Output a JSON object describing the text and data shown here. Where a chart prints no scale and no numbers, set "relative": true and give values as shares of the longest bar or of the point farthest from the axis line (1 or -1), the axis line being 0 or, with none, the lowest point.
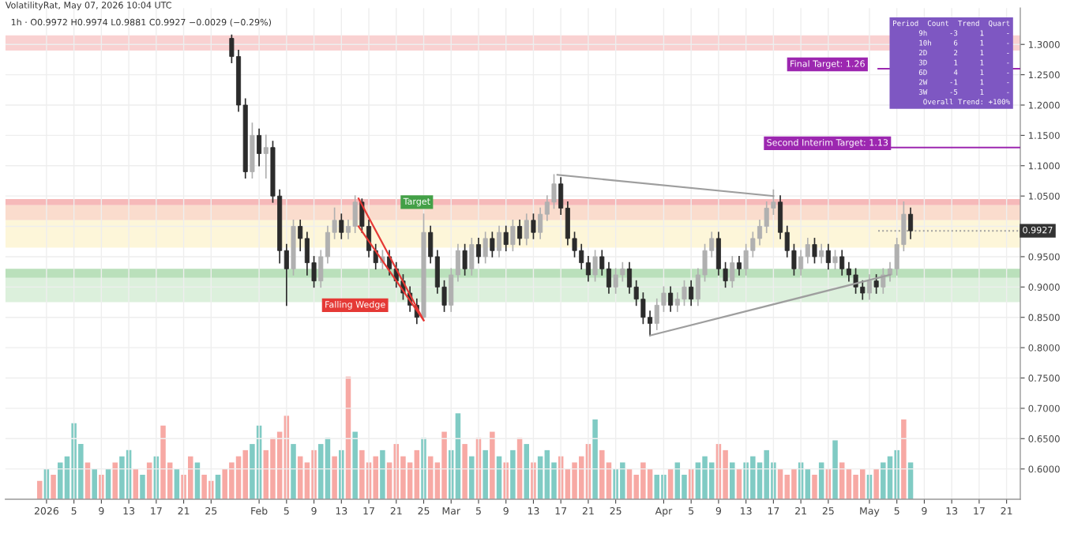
{
  "chart_data": [
    {
      "type": "candlestick",
      "title": "VolatilityRat, May 07, 2026 10:04 UTC",
      "subtitle": "1h · O0.9972 H0.9974 L0.9881 C0.9927 −0.0029 (−0.29%)",
      "colors": [
        "#2b2b2b",
        "#2b2b2b",
        "#2b2b2b",
        "#b0b0b0",
        "#2b2b2b",
        "#b0b0b0",
        "#2b2b2b",
        "#2b2b2b",
        "#2b2b2b",
        "#b0b0b0",
        "#2b2b2b",
        "#2b2b2b",
        "#2b2b2b",
        "#b0b0b0",
        "#b0b0b0",
        "#b0b0b0",
        "#2b2b2b",
        "#b0b0b0",
        "#b0b0b0",
        "#2b2b2b",
        "#2b2b2b",
        "#2b2b2b",
        "#b0b0b0",
        "#2b2b2b",
        "#2b2b2b",
        "#2b2b2b",
        "#2b2b2b",
        "#2b2b2b",
        "#b0b0b0",
        "#2b2b2b",
        "#2b2b2b",
        "#2b2b2b",
        "#b0b0b0",
        "#b0b0b0",
        "#2b2b2b",
        "#b0b0b0",
        "#2b2b2b",
        "#b0b0b0",
        "#2b2b2b",
        "#b0b0b0",
        "#2b2b2b",
        "#b0b0b0",
        "#2b2b2b",
        "#b0b0b0",
        "#2b2b2b",
        "#b0b0b0",
        "#b0b0b0",
        "#b0b0b0",
        "#2b2b2b",
        "#2b2b2b",
        "#2b2b2b",
        "#2b2b2b",
        "#2b2b2b",
        "#b0b0b0",
        "#2b2b2b",
        "#2b2b2b",
        "#b0b0b0",
        "#b0b0b0",
        "#2b2b2b",
        "#2b2b2b",
        "#2b2b2b",
        "#2b2b2b",
        "#b0b0b0",
        "#b0b0b0",
        "#2b2b2b",
        "#b0b0b0",
        "#b0b0b0",
        "#2b2b2b",
        "#b0b0b0",
        "#b0b0b0",
        "#b0b0b0",
        "#2b2b2b",
        "#2b2b2b",
        "#b0b0b0",
        "#2b2b2b",
        "#b0b0b0",
        "#b0b0b0",
        "#b0b0b0",
        "#b0b0b0",
        "#b0b0b0",
        "#2b2b2b",
        "#2b2b2b",
        "#2b2b2b",
        "#b0b0b0",
        "#b0b0b0",
        "#2b2b2b",
        "#b0b0b0",
        "#2b2b2b",
        "#b0b0b0",
        "#2b2b2b",
        "#2b2b2b",
        "#2b2b2b",
        "#2b2b2b",
        "#b0b0b0",
        "#2b2b2b",
        "#b0b0b0",
        "#b0b0b0",
        "#b0b0b0",
        "#b0b0b0",
        "#2b2b2b"
      ],
      "x": [
        "2026-01-28",
        "2026-01-29",
        "2026-01-30",
        "2026-01-31",
        "2026-02-01",
        "2026-02-02",
        "2026-02-03",
        "2026-02-04",
        "2026-02-05",
        "2026-02-06",
        "2026-02-07",
        "2026-02-08",
        "2026-02-09",
        "2026-02-10",
        "2026-02-11",
        "2026-02-12",
        "2026-02-13",
        "2026-02-14",
        "2026-02-15",
        "2026-02-16",
        "2026-02-17",
        "2026-02-18",
        "2026-02-19",
        "2026-02-20",
        "2026-02-21",
        "2026-02-22",
        "2026-02-23",
        "2026-02-24",
        "2026-02-25",
        "2026-02-26",
        "2026-02-27",
        "2026-02-28",
        "2026-03-01",
        "2026-03-02",
        "2026-03-03",
        "2026-03-04",
        "2026-03-05",
        "2026-03-06",
        "2026-03-07",
        "2026-03-08",
        "2026-03-09",
        "2026-03-10",
        "2026-03-11",
        "2026-03-12",
        "2026-03-13",
        "2026-03-14",
        "2026-03-15",
        "2026-03-16",
        "2026-03-17",
        "2026-03-18",
        "2026-03-19",
        "2026-03-20",
        "2026-03-21",
        "2026-03-22",
        "2026-03-23",
        "2026-03-24",
        "2026-03-25",
        "2026-03-26",
        "2026-03-27",
        "2026-03-28",
        "2026-03-29",
        "2026-03-30",
        "2026-03-31",
        "2026-04-01",
        "2026-04-02",
        "2026-04-03",
        "2026-04-04",
        "2026-04-05",
        "2026-04-06",
        "2026-04-07",
        "2026-04-08",
        "2026-04-09",
        "2026-04-10",
        "2026-04-11",
        "2026-04-12",
        "2026-04-13",
        "2026-04-14",
        "2026-04-15",
        "2026-04-16",
        "2026-04-17",
        "2026-04-18",
        "2026-04-19",
        "2026-04-20",
        "2026-04-21",
        "2026-04-22",
        "2026-04-23",
        "2026-04-24",
        "2026-04-25",
        "2026-04-26",
        "2026-04-27",
        "2026-04-28",
        "2026-04-29",
        "2026-04-30",
        "2026-05-01",
        "2026-05-02",
        "2026-05-03",
        "2026-05-04",
        "2026-05-05",
        "2026-05-06",
        "2026-05-07"
      ],
      "ohlc": [
        [
          1.31,
          1.315,
          1.27,
          1.28
        ],
        [
          1.28,
          1.29,
          1.19,
          1.2
        ],
        [
          1.2,
          1.21,
          1.08,
          1.09
        ],
        [
          1.09,
          1.17,
          1.08,
          1.15
        ],
        [
          1.15,
          1.16,
          1.1,
          1.12
        ],
        [
          1.12,
          1.15,
          1.08,
          1.13
        ],
        [
          1.13,
          1.14,
          1.04,
          1.05
        ],
        [
          1.05,
          1.06,
          0.94,
          0.96
        ],
        [
          0.96,
          0.97,
          0.87,
          0.93
        ],
        [
          0.93,
          1.01,
          0.92,
          1.0
        ],
        [
          1.0,
          1.01,
          0.96,
          0.98
        ],
        [
          0.98,
          0.99,
          0.92,
          0.94
        ],
        [
          0.94,
          0.95,
          0.9,
          0.91
        ],
        [
          0.91,
          0.96,
          0.9,
          0.95
        ],
        [
          0.95,
          1.0,
          0.94,
          0.99
        ],
        [
          0.99,
          1.03,
          0.98,
          1.01
        ],
        [
          1.01,
          1.02,
          0.98,
          0.99
        ],
        [
          0.99,
          1.01,
          0.98,
          1.0
        ],
        [
          1.0,
          1.05,
          0.99,
          1.04
        ],
        [
          1.04,
          1.045,
          0.99,
          1.0
        ],
        [
          1.0,
          1.01,
          0.95,
          0.96
        ],
        [
          0.96,
          0.97,
          0.93,
          0.94
        ],
        [
          0.94,
          0.96,
          0.93,
          0.95
        ],
        [
          0.95,
          0.96,
          0.92,
          0.93
        ],
        [
          0.93,
          0.94,
          0.9,
          0.91
        ],
        [
          0.91,
          0.92,
          0.88,
          0.89
        ],
        [
          0.89,
          0.9,
          0.86,
          0.87
        ],
        [
          0.87,
          0.88,
          0.84,
          0.85
        ],
        [
          0.85,
          1.02,
          0.85,
          0.99
        ],
        [
          0.99,
          1.0,
          0.94,
          0.95
        ],
        [
          0.95,
          0.96,
          0.89,
          0.9
        ],
        [
          0.9,
          0.91,
          0.86,
          0.87
        ],
        [
          0.87,
          0.93,
          0.86,
          0.92
        ],
        [
          0.92,
          0.97,
          0.91,
          0.96
        ],
        [
          0.96,
          0.97,
          0.92,
          0.93
        ],
        [
          0.93,
          0.98,
          0.92,
          0.97
        ],
        [
          0.97,
          0.98,
          0.94,
          0.95
        ],
        [
          0.95,
          0.99,
          0.94,
          0.98
        ],
        [
          0.98,
          0.99,
          0.95,
          0.96
        ],
        [
          0.96,
          1.0,
          0.95,
          0.99
        ],
        [
          0.99,
          1.0,
          0.96,
          0.97
        ],
        [
          0.97,
          1.01,
          0.96,
          1.0
        ],
        [
          1.0,
          1.01,
          0.97,
          0.98
        ],
        [
          0.98,
          1.02,
          0.97,
          1.01
        ],
        [
          1.01,
          1.02,
          0.98,
          0.99
        ],
        [
          0.99,
          1.03,
          0.98,
          1.02
        ],
        [
          1.02,
          1.05,
          1.01,
          1.04
        ],
        [
          1.04,
          1.085,
          1.03,
          1.07
        ],
        [
          1.07,
          1.08,
          1.02,
          1.03
        ],
        [
          1.03,
          1.04,
          0.97,
          0.98
        ],
        [
          0.98,
          0.99,
          0.95,
          0.96
        ],
        [
          0.96,
          0.97,
          0.93,
          0.94
        ],
        [
          0.94,
          0.95,
          0.91,
          0.92
        ],
        [
          0.92,
          0.96,
          0.91,
          0.95
        ],
        [
          0.95,
          0.96,
          0.92,
          0.93
        ],
        [
          0.93,
          0.94,
          0.89,
          0.9
        ],
        [
          0.9,
          0.93,
          0.89,
          0.92
        ],
        [
          0.92,
          0.94,
          0.91,
          0.93
        ],
        [
          0.93,
          0.94,
          0.89,
          0.9
        ],
        [
          0.9,
          0.91,
          0.87,
          0.88
        ],
        [
          0.88,
          0.89,
          0.84,
          0.85
        ],
        [
          0.85,
          0.86,
          0.82,
          0.84
        ],
        [
          0.84,
          0.88,
          0.83,
          0.87
        ],
        [
          0.87,
          0.9,
          0.86,
          0.89
        ],
        [
          0.89,
          0.9,
          0.86,
          0.87
        ],
        [
          0.87,
          0.89,
          0.86,
          0.88
        ],
        [
          0.88,
          0.91,
          0.87,
          0.9
        ],
        [
          0.9,
          0.91,
          0.87,
          0.88
        ],
        [
          0.88,
          0.93,
          0.87,
          0.92
        ],
        [
          0.92,
          0.97,
          0.91,
          0.96
        ],
        [
          0.96,
          0.99,
          0.95,
          0.98
        ],
        [
          0.98,
          0.99,
          0.92,
          0.93
        ],
        [
          0.93,
          0.94,
          0.9,
          0.91
        ],
        [
          0.91,
          0.95,
          0.9,
          0.94
        ],
        [
          0.94,
          0.95,
          0.92,
          0.93
        ],
        [
          0.93,
          0.97,
          0.92,
          0.96
        ],
        [
          0.96,
          0.99,
          0.95,
          0.98
        ],
        [
          0.98,
          1.01,
          0.97,
          1.0
        ],
        [
          1.0,
          1.04,
          0.99,
          1.03
        ],
        [
          1.03,
          1.06,
          1.02,
          1.04
        ],
        [
          1.04,
          1.05,
          0.98,
          0.99
        ],
        [
          0.99,
          1.0,
          0.95,
          0.96
        ],
        [
          0.96,
          0.97,
          0.92,
          0.93
        ],
        [
          0.93,
          0.96,
          0.92,
          0.95
        ],
        [
          0.95,
          0.98,
          0.94,
          0.97
        ],
        [
          0.97,
          0.98,
          0.94,
          0.95
        ],
        [
          0.95,
          0.97,
          0.94,
          0.96
        ],
        [
          0.96,
          0.97,
          0.93,
          0.94
        ],
        [
          0.94,
          0.96,
          0.93,
          0.95
        ],
        [
          0.95,
          0.96,
          0.92,
          0.93
        ],
        [
          0.93,
          0.94,
          0.91,
          0.92
        ],
        [
          0.92,
          0.93,
          0.89,
          0.9
        ],
        [
          0.9,
          0.91,
          0.88,
          0.89
        ],
        [
          0.89,
          0.92,
          0.88,
          0.91
        ],
        [
          0.91,
          0.92,
          0.89,
          0.9
        ],
        [
          0.9,
          0.93,
          0.89,
          0.92
        ],
        [
          0.92,
          0.94,
          0.91,
          0.93
        ],
        [
          0.93,
          0.98,
          0.92,
          0.97
        ],
        [
          0.97,
          1.04,
          0.96,
          1.02
        ],
        [
          1.02,
          1.03,
          0.98,
          0.9927
        ]
      ],
      "series": [
        {
          "type": "line",
          "color": "#e53935",
          "x": [
            "2026-02-15T12:00",
            "2026-02-25"
          ],
          "values": [
            1.046,
            0.845
          ]
        },
        {
          "type": "line",
          "color": "#e53935",
          "x": [
            "2026-02-15T12:00",
            "2026-02-25"
          ],
          "values": [
            1.0,
            0.845
          ]
        },
        {
          "type": "line",
          "color": "#9e9e9e",
          "x": [
            "2026-03-16T12:00",
            "2026-04-17"
          ],
          "values": [
            1.085,
            1.05
          ]
        },
        {
          "type": "line",
          "color": "#9e9e9e",
          "x": [
            "2026-03-30",
            "2026-05-04"
          ],
          "values": [
            0.82,
            0.92
          ]
        }
      ],
      "bands": [
        {
          "axis": "y",
          "from": 1.29,
          "to": 1.315,
          "color": "#f8c6c6"
        },
        {
          "axis": "y",
          "from": 1.035,
          "to": 1.045,
          "color": "#f4a8a8"
        },
        {
          "axis": "y",
          "from": 1.01,
          "to": 1.035,
          "color": "#f9d3c0"
        },
        {
          "axis": "y",
          "from": 0.965,
          "to": 1.01,
          "color": "#fdf4cf"
        },
        {
          "axis": "y",
          "from": 0.915,
          "to": 0.93,
          "color": "#a9d8aa"
        },
        {
          "axis": "y",
          "from": 0.875,
          "to": 0.915,
          "color": "#d3ecd3"
        }
      ],
      "ref_lines": [
        {
          "axis": "y",
          "value": 1.26,
          "label": "Final Target: 1.26",
          "color": "#9c27b0"
        },
        {
          "axis": "y",
          "value": 1.13,
          "label": "Second Interim Target: 1.13",
          "color": "#9c27b0"
        },
        {
          "axis": "y",
          "value": 0.9927,
          "label": "0.9927",
          "color": "#9e9e9e",
          "line_style": "dotted"
        }
      ],
      "annotations": [
        {
          "text": "Falling Wedge",
          "x": "2026-02-15",
          "y": 0.87
        },
        {
          "text": "Target",
          "x": "2026-02-24",
          "y": 1.04
        },
        "Period  Count  Trend  Quart\n9h     -3     1     -\n10h     6     1     -\n2D      2     1     -\n3D      1     1     -\n6D      4     1     -\n2W     -1     1     -\n3W     -5     1     -\nOverall Trend: +100%"
      ],
      "xlim": [
        "2025-12-26",
        "2026-05-23"
      ],
      "xticks": [
        {
          "value": "2026-01-01",
          "label": "2026"
        },
        {
          "value": "2026-01-05",
          "label": "5"
        },
        {
          "value": "2026-01-09",
          "label": "9"
        },
        {
          "value": "2026-01-13",
          "label": "13"
        },
        {
          "value": "2026-01-17",
          "label": "17"
        },
        {
          "value": "2026-01-21",
          "label": "21"
        },
        {
          "value": "2026-01-25",
          "label": "25"
        },
        {
          "value": "2026-02-01",
          "label": "Feb"
        },
        {
          "value": "2026-02-05",
          "label": "5"
        },
        {
          "value": "2026-02-09",
          "label": "9"
        },
        {
          "value": "2026-02-13",
          "label": "13"
        },
        {
          "value": "2026-02-17",
          "label": "17"
        },
        {
          "value": "2026-02-21",
          "label": "21"
        },
        {
          "value": "2026-02-25",
          "label": "25"
        },
        {
          "value": "2026-03-01",
          "label": "Mar"
        },
        {
          "value": "2026-03-05",
          "label": "5"
        },
        {
          "value": "2026-03-09",
          "label": "9"
        },
        {
          "value": "2026-03-13",
          "label": "13"
        },
        {
          "value": "2026-03-17",
          "label": "17"
        },
        {
          "value": "2026-03-21",
          "label": "21"
        },
        {
          "value": "2026-03-25",
          "label": "25"
        },
        {
          "value": "2026-04-01",
          "label": "Apr"
        },
        {
          "value": "2026-04-05",
          "label": "5"
        },
        {
          "value": "2026-04-09",
          "label": "9"
        },
        {
          "value": "2026-04-13",
          "label": "13"
        },
        {
          "value": "2026-04-17",
          "label": "17"
        },
        {
          "value": "2026-04-21",
          "label": "21"
        },
        {
          "value": "2026-04-25",
          "label": "25"
        },
        {
          "value": "2026-05-01",
          "label": "May"
        },
        {
          "value": "2026-05-05",
          "label": "5"
        },
        {
          "value": "2026-05-09",
          "label": "9"
        },
        {
          "value": "2026-05-13",
          "label": "13"
        },
        {
          "value": "2026-05-17",
          "label": "17"
        },
        {
          "value": "2026-05-21",
          "label": "21"
        }
      ],
      "ylim": [
        0.55,
        1.36
      ],
      "yticks": [
        {
          "value": 0.6,
          "label": "0.6000"
        },
        {
          "value": 0.65,
          "label": "0.6500"
        },
        {
          "value": 0.7,
          "label": "0.7000"
        },
        {
          "value": 0.75,
          "label": "0.7500"
        },
        {
          "value": 0.8,
          "label": "0.8000"
        },
        {
          "value": 0.85,
          "label": "0.8500"
        },
        {
          "value": 0.9,
          "label": "0.9000"
        },
        {
          "value": 0.95,
          "label": "0.9500"
        },
        {
          "value": 1.0,
          "label": null
        },
        {
          "value": 1.05,
          "label": "1.0500"
        },
        {
          "value": 1.1,
          "label": "1.1000"
        },
        {
          "value": 1.15,
          "label": "1.1500"
        },
        {
          "value": 1.2,
          "label": "1.2000"
        },
        {
          "value": 1.25,
          "label": "1.2500"
        },
        {
          "value": 1.3,
          "label": "1.3000"
        }
      ],
      "grid": true
    },
    {
      "type": "bar",
      "relative": true,
      "tick_labels": false,
      "xlim": [
        "2025-12-26",
        "2026-05-23"
      ],
      "x": [
        "2025-12-31",
        "2026-01-01",
        "2026-01-02",
        "2026-01-03",
        "2026-01-04",
        "2026-01-05",
        "2026-01-06",
        "2026-01-07",
        "2026-01-08",
        "2026-01-09",
        "2026-01-10",
        "2026-01-11",
        "2026-01-12",
        "2026-01-13",
        "2026-01-14",
        "2026-01-15",
        "2026-01-16",
        "2026-01-17",
        "2026-01-18",
        "2026-01-19",
        "2026-01-20",
        "2026-01-21",
        "2026-01-22",
        "2026-01-23",
        "2026-01-24",
        "2026-01-25",
        "2026-01-26",
        "2026-01-27",
        "2026-01-28",
        "2026-01-29",
        "2026-01-30",
        "2026-01-31",
        "2026-02-01",
        "2026-02-02",
        "2026-02-03",
        "2026-02-04",
        "2026-02-05",
        "2026-02-06",
        "2026-02-07",
        "2026-02-08",
        "2026-02-09",
        "2026-02-10",
        "2026-02-11",
        "2026-02-12",
        "2026-02-13",
        "2026-02-14",
        "2026-02-15",
        "2026-02-16",
        "2026-02-17",
        "2026-02-18",
        "2026-02-19",
        "2026-02-20",
        "2026-02-21",
        "2026-02-22",
        "2026-02-23",
        "2026-02-24",
        "2026-02-25",
        "2026-02-26",
        "2026-02-27",
        "2026-02-28",
        "2026-03-01",
        "2026-03-02",
        "2026-03-03",
        "2026-03-04",
        "2026-03-05",
        "2026-03-06",
        "2026-03-07",
        "2026-03-08",
        "2026-03-09",
        "2026-03-10",
        "2026-03-11",
        "2026-03-12",
        "2026-03-13",
        "2026-03-14",
        "2026-03-15",
        "2026-03-16",
        "2026-03-17",
        "2026-03-18",
        "2026-03-19",
        "2026-03-20",
        "2026-03-21",
        "2026-03-22",
        "2026-03-23",
        "2026-03-24",
        "2026-03-25",
        "2026-03-26",
        "2026-03-27",
        "2026-03-28",
        "2026-03-29",
        "2026-03-30",
        "2026-03-31",
        "2026-04-01",
        "2026-04-02",
        "2026-04-03",
        "2026-04-04",
        "2026-04-05",
        "2026-04-06",
        "2026-04-07",
        "2026-04-08",
        "2026-04-09",
        "2026-04-10",
        "2026-04-11",
        "2026-04-12",
        "2026-04-13",
        "2026-04-14",
        "2026-04-15",
        "2026-04-16",
        "2026-04-17",
        "2026-04-18",
        "2026-04-19",
        "2026-04-20",
        "2026-04-21",
        "2026-04-22",
        "2026-04-23",
        "2026-04-24",
        "2026-04-25",
        "2026-04-26",
        "2026-04-27",
        "2026-04-28",
        "2026-04-29",
        "2026-04-30",
        "2026-05-01",
        "2026-05-02",
        "2026-05-03",
        "2026-05-04",
        "2026-05-05",
        "2026-05-06",
        "2026-05-07"
      ],
      "values": [
        0.15,
        0.25,
        0.2,
        0.3,
        0.35,
        0.62,
        0.45,
        0.3,
        0.25,
        0.2,
        0.25,
        0.3,
        0.35,
        0.4,
        0.25,
        0.2,
        0.3,
        0.35,
        0.6,
        0.3,
        0.25,
        0.2,
        0.35,
        0.3,
        0.2,
        0.15,
        0.2,
        0.25,
        0.3,
        0.35,
        0.4,
        0.45,
        0.6,
        0.4,
        0.5,
        0.55,
        0.68,
        0.45,
        0.35,
        0.3,
        0.4,
        0.45,
        0.5,
        0.35,
        0.4,
        1.0,
        0.55,
        0.4,
        0.3,
        0.35,
        0.4,
        0.3,
        0.45,
        0.35,
        0.3,
        0.4,
        0.5,
        0.35,
        0.3,
        0.55,
        0.4,
        0.7,
        0.45,
        0.35,
        0.5,
        0.4,
        0.55,
        0.35,
        0.3,
        0.4,
        0.5,
        0.45,
        0.3,
        0.35,
        0.4,
        0.3,
        0.35,
        0.25,
        0.3,
        0.35,
        0.45,
        0.65,
        0.4,
        0.3,
        0.25,
        0.3,
        0.25,
        0.2,
        0.3,
        0.25,
        0.2,
        0.2,
        0.25,
        0.3,
        0.2,
        0.25,
        0.3,
        0.35,
        0.3,
        0.45,
        0.4,
        0.3,
        0.25,
        0.3,
        0.35,
        0.3,
        0.4,
        0.3,
        0.25,
        0.2,
        0.25,
        0.3,
        0.25,
        0.2,
        0.3,
        0.25,
        0.48,
        0.3,
        0.25,
        0.2,
        0.25,
        0.2,
        0.25,
        0.3,
        0.35,
        0.4,
        0.65,
        0.3
      ],
      "colors": [
        "#f7a9a4",
        "#80cbc4",
        "#f7a9a4",
        "#80cbc4",
        "#80cbc4",
        "#80cbc4",
        "#80cbc4",
        "#f7a9a4",
        "#80cbc4",
        "#f7a9a4",
        "#80cbc4",
        "#f7a9a4",
        "#80cbc4",
        "#80cbc4",
        "#f7a9a4",
        "#80cbc4",
        "#f7a9a4",
        "#80cbc4",
        "#f7a9a4",
        "#f7a9a4",
        "#80cbc4",
        "#f7a9a4",
        "#f7a9a4",
        "#80cbc4",
        "#f7a9a4",
        "#f7a9a4",
        "#80cbc4",
        "#f7a9a4",
        "#f7a9a4",
        "#f7a9a4",
        "#f7a9a4",
        "#80cbc4",
        "#80cbc4",
        "#f7a9a4",
        "#f7a9a4",
        "#f7a9a4",
        "#f7a9a4",
        "#80cbc4",
        "#f7a9a4",
        "#f7a9a4",
        "#f7a9a4",
        "#80cbc4",
        "#80cbc4",
        "#f7a9a4",
        "#80cbc4",
        "#f7a9a4",
        "#80cbc4",
        "#f7a9a4",
        "#f7a9a4",
        "#f7a9a4",
        "#80cbc4",
        "#f7a9a4",
        "#f7a9a4",
        "#f7a9a4",
        "#f7a9a4",
        "#f7a9a4",
        "#80cbc4",
        "#f7a9a4",
        "#f7a9a4",
        "#f7a9a4",
        "#80cbc4",
        "#80cbc4",
        "#f7a9a4",
        "#80cbc4",
        "#f7a9a4",
        "#80cbc4",
        "#f7a9a4",
        "#80cbc4",
        "#f7a9a4",
        "#80cbc4",
        "#f7a9a4",
        "#80cbc4",
        "#f7a9a4",
        "#80cbc4",
        "#80cbc4",
        "#80cbc4",
        "#f7a9a4",
        "#f7a9a4",
        "#f7a9a4",
        "#f7a9a4",
        "#f7a9a4",
        "#80cbc4",
        "#f7a9a4",
        "#f7a9a4",
        "#80cbc4",
        "#80cbc4",
        "#f7a9a4",
        "#f7a9a4",
        "#f7a9a4",
        "#f7a9a4",
        "#80cbc4",
        "#80cbc4",
        "#f7a9a4",
        "#80cbc4",
        "#80cbc4",
        "#f7a9a4",
        "#80cbc4",
        "#80cbc4",
        "#80cbc4",
        "#f7a9a4",
        "#f7a9a4",
        "#80cbc4",
        "#f7a9a4",
        "#80cbc4",
        "#80cbc4",
        "#80cbc4",
        "#80cbc4",
        "#80cbc4",
        "#f7a9a4",
        "#f7a9a4",
        "#f7a9a4",
        "#80cbc4",
        "#80cbc4",
        "#f7a9a4",
        "#80cbc4",
        "#f7a9a4",
        "#80cbc4",
        "#f7a9a4",
        "#f7a9a4",
        "#f7a9a4",
        "#f7a9a4",
        "#80cbc4",
        "#f7a9a4",
        "#80cbc4",
        "#80cbc4",
        "#80cbc4",
        "#f7a9a4",
        "#80cbc4"
      ]
    }
  ]
}
